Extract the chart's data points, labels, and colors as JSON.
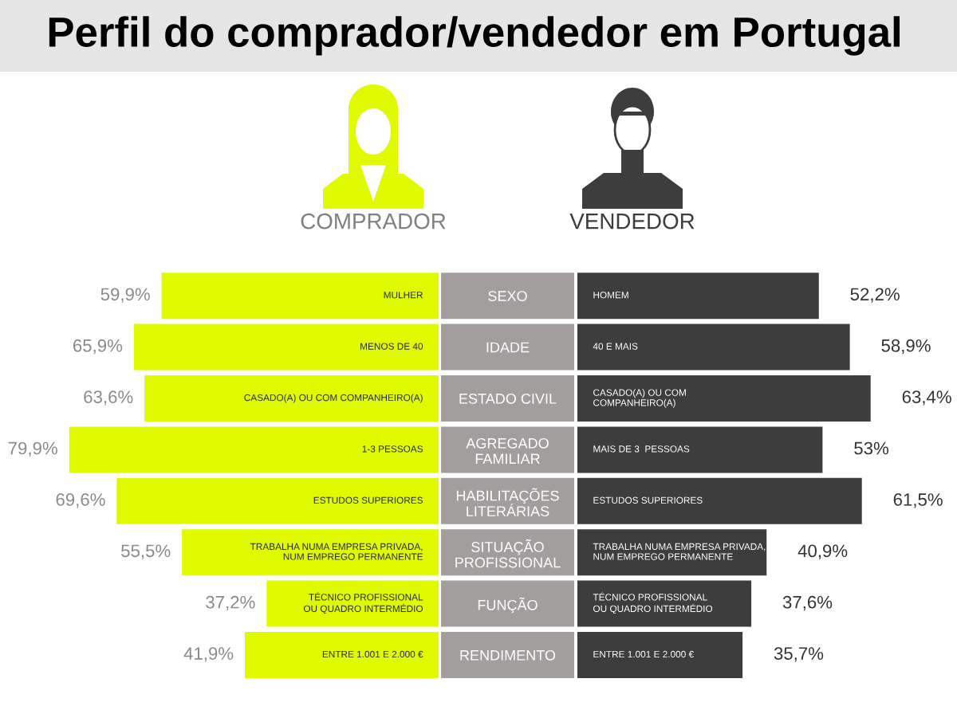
{
  "chart_data": [
    {
      "type": "bar",
      "orientation": "horizontal",
      "title": "Perfil do comprador/vendedor em Portugal",
      "categories": [
        "SEXO",
        "IDADE",
        "ESTADO CIVIL",
        "AGREGADO\nFAMILIAR",
        "HABILITAÇÕES\nLITERÁRIAS",
        "SITUAÇÃO\nPROFISSIONAL",
        "FUNÇÃO",
        "RENDIMENTO"
      ],
      "tick_labels": false,
      "series": [
        {
          "name": "COMPRADOR",
          "color": "#e0fb00",
          "values": [
            59.9,
            65.9,
            63.6,
            79.9,
            69.6,
            55.5,
            37.2,
            41.9
          ],
          "value_labels": [
            "59,9%",
            "65,9%",
            "63,6%",
            "79,9%",
            "69,6%",
            "55,5%",
            "37,2%",
            "41,9%"
          ]
        }
      ],
      "annotations": [
        "MULHER",
        "MENOS DE 40",
        "CASADO(A) OU COM COMPANHEIRO(A)",
        "1-3 PESSOAS",
        "ESTUDOS SUPERIORES",
        "TRABALHA NUMA EMPRESA PRIVADA,\nNUM EMPREGO PERMANENTE",
        "TÉCNICO PROFISSIONAL\nOU QUADRO INTERMÉDIO",
        "ENTRE 1.001 E 2.000 €"
      ]
    },
    {
      "type": "bar",
      "orientation": "horizontal",
      "categories": [
        "SEXO",
        "IDADE",
        "ESTADO CIVIL",
        "AGREGADO\nFAMILIAR",
        "HABILITAÇÕES\nLITERÁRIAS",
        "SITUAÇÃO\nPROFISSIONAL",
        "FUNÇÃO",
        "RENDIMENTO"
      ],
      "tick_labels": "y",
      "series": [
        {
          "name": "VENDEDOR",
          "color": "#3d3d3d",
          "values": [
            52.2,
            58.9,
            63.4,
            53,
            61.5,
            40.9,
            37.6,
            35.7
          ],
          "value_labels": [
            "52,2%",
            "58,9%",
            "63,4%",
            "53%",
            "61,5%",
            "40,9%",
            "37,6%",
            "35,7%"
          ]
        }
      ],
      "annotations": [
        "HOMEM",
        "40 E MAIS",
        "CASADO(A) OU COM\nCOMPANHEIRO(A)",
        "MAIS DE 3  PESSOAS",
        "ESTUDOS SUPERIORES",
        "TRABALHA NUMA EMPRESA PRIVADA,\nNUM EMPREGO PERMANENTE",
        "TÉCNICO PROFISSIONAL\nOU QUADRO INTERMÉDIO",
        "ENTRE 1.001 E 2.000 €"
      ]
    }
  ]
}
